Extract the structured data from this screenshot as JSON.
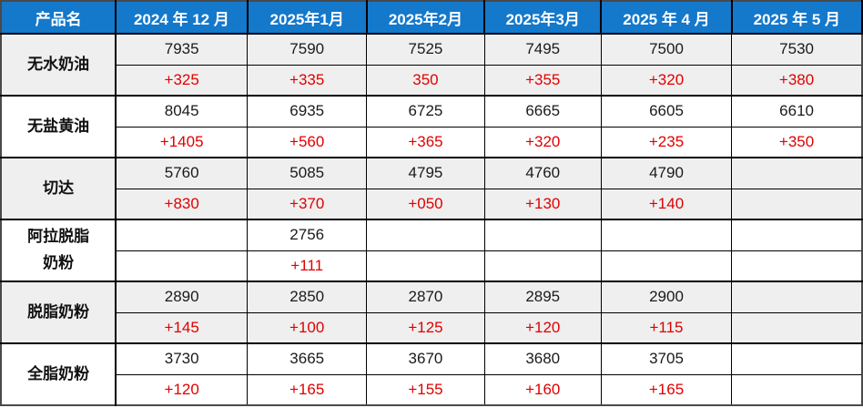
{
  "table": {
    "header": {
      "product_col": "产品名",
      "months": [
        "2024 年 12 月",
        "2025年1月",
        "2025年2月",
        "2025年3月",
        "2025 年 4 月",
        "2025 年 5 月"
      ]
    },
    "colors": {
      "header_bg": "#1478cb",
      "header_text": "#ffffff",
      "shaded_row_bg": "#efefef",
      "plain_row_bg": "#ffffff",
      "price_text": "#1a1a1a",
      "change_text": "#e00000",
      "border": "#000000"
    },
    "products": [
      {
        "name": "无水奶油",
        "shaded": true,
        "prices": [
          "7935",
          "7590",
          "7525",
          "7495",
          "7500",
          "7530"
        ],
        "changes": [
          "+325",
          "+335",
          "350",
          "+355",
          "+320",
          "+380"
        ]
      },
      {
        "name": "无盐黄油",
        "shaded": false,
        "prices": [
          "8045",
          "6935",
          "6725",
          "6665",
          "6605",
          "6610"
        ],
        "changes": [
          "+1405",
          "+560",
          "+365",
          "+320",
          "+235",
          "+350"
        ]
      },
      {
        "name": "切达",
        "shaded": true,
        "prices": [
          "5760",
          "5085",
          "4795",
          "4760",
          "4790",
          ""
        ],
        "changes": [
          "+830",
          "+370",
          "+050",
          "+130",
          "+140",
          ""
        ]
      },
      {
        "name": "阿拉脱脂\n奶粉",
        "shaded": false,
        "prices": [
          "",
          "2756",
          "",
          "",
          "",
          ""
        ],
        "changes": [
          "",
          "+111",
          "",
          "",
          "",
          ""
        ]
      },
      {
        "name": "脱脂奶粉",
        "shaded": true,
        "prices": [
          "2890",
          "2850",
          "2870",
          "2895",
          "2900",
          ""
        ],
        "changes": [
          "+145",
          "+100",
          "+125",
          "+120",
          "+115",
          ""
        ]
      },
      {
        "name": "全脂奶粉",
        "shaded": false,
        "prices": [
          "3730",
          "3665",
          "3670",
          "3680",
          "3705",
          ""
        ],
        "changes": [
          "+120",
          "+165",
          "+155",
          "+160",
          "+165",
          ""
        ]
      }
    ]
  }
}
